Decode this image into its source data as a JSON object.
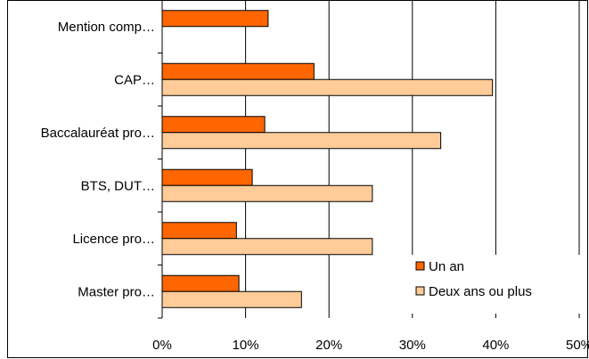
{
  "chart_data": {
    "type": "bar",
    "orientation": "horizontal",
    "categories": [
      "Mention comp…",
      "CAP…",
      "Baccalauréat pro…",
      "BTS, DUT…",
      "Licence pro…",
      "Master pro…"
    ],
    "series": [
      {
        "name": "Un an",
        "color": "#ff6600",
        "values": [
          12.7,
          18.2,
          12.3,
          10.8,
          8.9,
          9.2
        ]
      },
      {
        "name": "Deux ans ou plus",
        "color": "#ffcc99",
        "values": [
          null,
          39.6,
          33.4,
          25.2,
          25.2,
          16.7
        ]
      }
    ],
    "x_ticks": [
      "0%",
      "10%",
      "20%",
      "30%",
      "40%",
      "50%"
    ],
    "xlim": [
      0,
      50
    ],
    "grid": "vertical",
    "legend_position": "bottom-right",
    "title": "",
    "xlabel": "",
    "ylabel": ""
  }
}
